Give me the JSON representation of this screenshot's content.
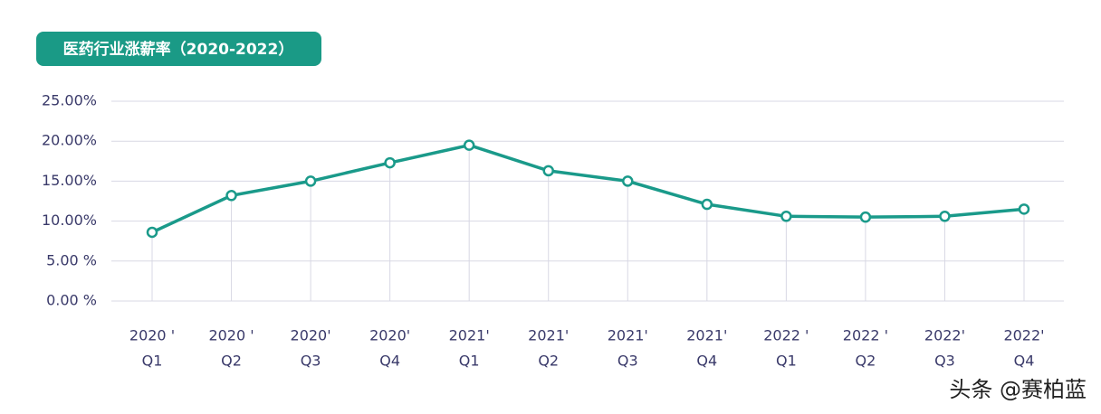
{
  "chart_data": {
    "type": "line",
    "title": "医药行业涨薪率（2020-2022）",
    "categories": [
      [
        "2020 '",
        "Q1"
      ],
      [
        "2020 '",
        "Q2"
      ],
      [
        "2020'",
        "Q3"
      ],
      [
        "2020'",
        "Q4"
      ],
      [
        "2021'",
        "Q1"
      ],
      [
        "2021'",
        "Q2"
      ],
      [
        "2021'",
        "Q3"
      ],
      [
        "2021'",
        "Q4"
      ],
      [
        "2022 '",
        "Q1"
      ],
      [
        "2022 '",
        "Q2"
      ],
      [
        "2022'",
        "Q3"
      ],
      [
        "2022'",
        "Q4"
      ]
    ],
    "series": [
      {
        "color": "#1a9a8a",
        "values": [
          8.6,
          13.2,
          15.0,
          17.3,
          19.5,
          16.3,
          15.0,
          12.1,
          10.6,
          10.5,
          10.6,
          11.5
        ]
      }
    ],
    "ylim": [
      0,
      25
    ],
    "yticks": [
      {
        "value": 0,
        "label": "0.00 %"
      },
      {
        "value": 5,
        "label": "5.00 %"
      },
      {
        "value": 10,
        "label": "10.00%"
      },
      {
        "value": 15,
        "label": "15.00%"
      },
      {
        "value": 20,
        "label": "20.00%"
      },
      {
        "value": 25,
        "label": "25.00%"
      }
    ],
    "grid": true,
    "watermark": "头条 @赛柏蓝"
  }
}
